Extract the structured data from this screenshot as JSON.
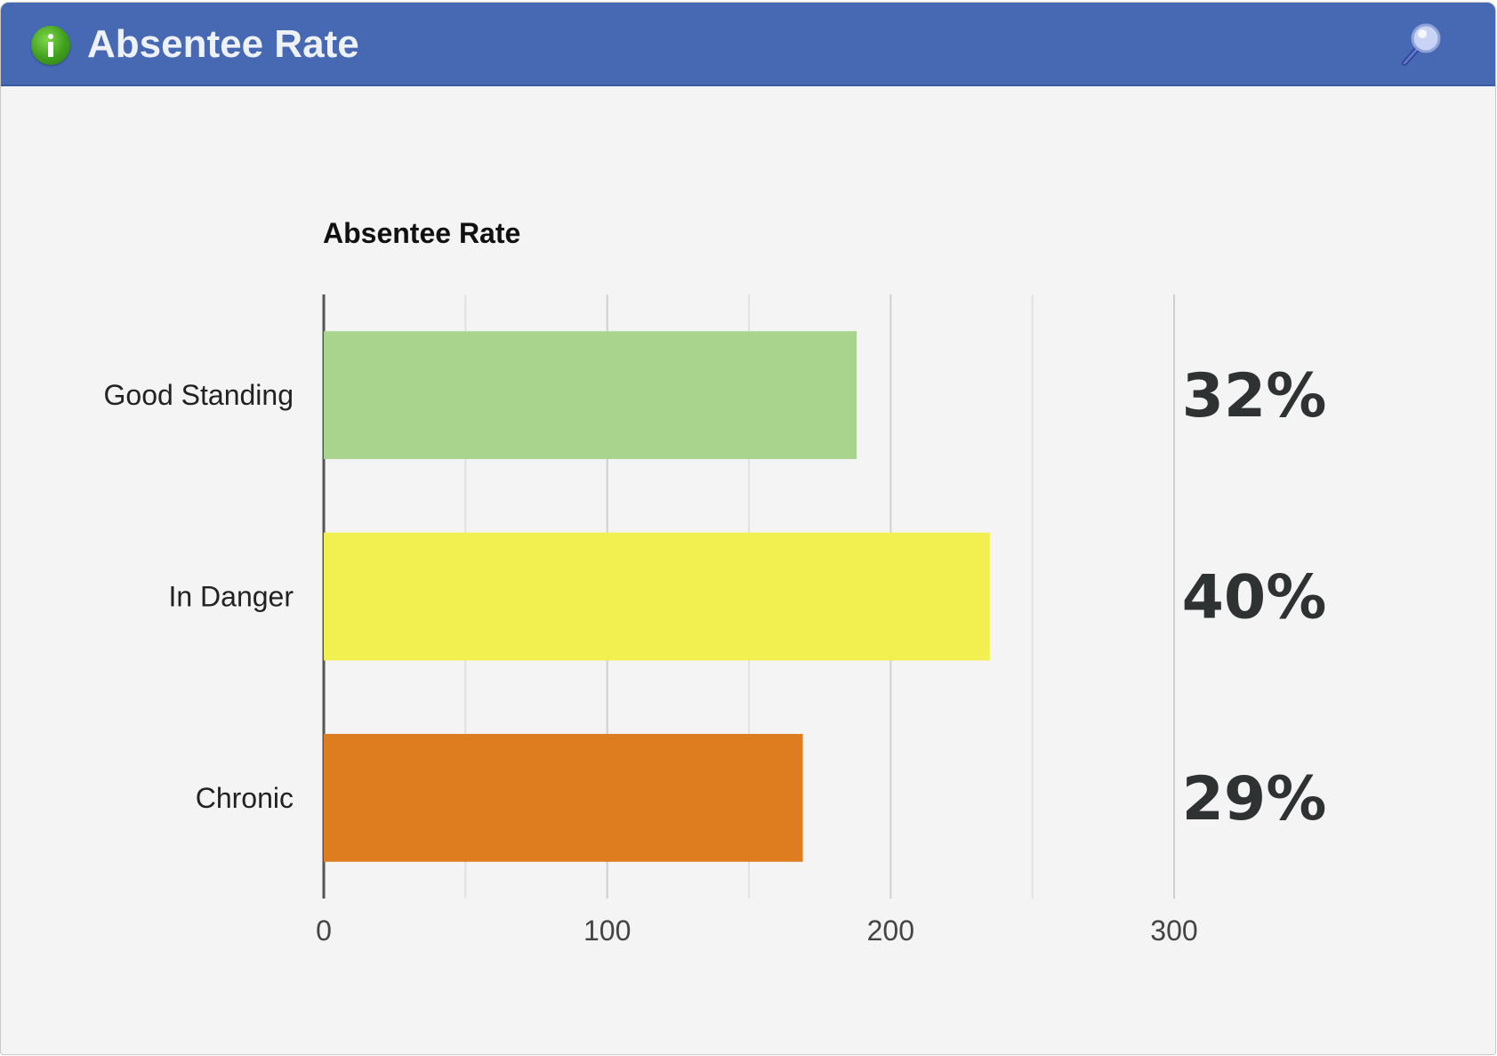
{
  "widget": {
    "title": "Absentee Rate",
    "info_icon": "info-icon",
    "search_icon": "search-icon",
    "header_color": "#4769b4"
  },
  "chart_data": {
    "type": "bar",
    "orientation": "horizontal",
    "title": "Absentee Rate",
    "categories": [
      "Good Standing",
      "In Danger",
      "Chronic"
    ],
    "values": [
      188,
      235,
      169
    ],
    "colors": [
      "#a8d48e",
      "#f1f050",
      "#dd7d20"
    ],
    "annotations": [
      "32%",
      "40%",
      "29%"
    ],
    "xticks": [
      "0",
      "100",
      "200",
      "300"
    ],
    "xlim": [
      0,
      300
    ],
    "grid": true,
    "legend": "none"
  }
}
